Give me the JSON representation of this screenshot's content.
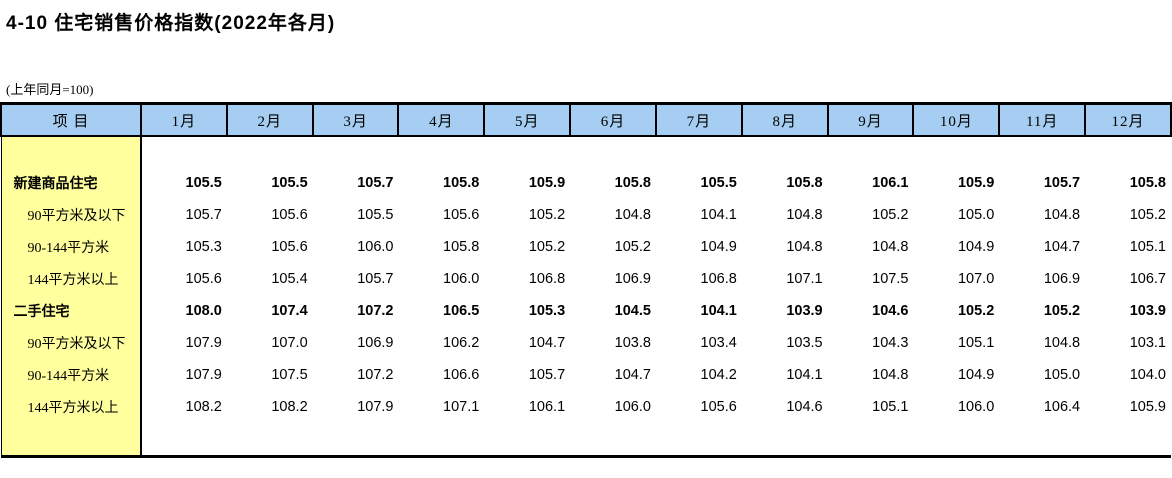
{
  "page": {
    "title": "4-10  住宅销售价格指数(2022年各月)",
    "note": "(上年同月=100)"
  },
  "table": {
    "item_header": "项  目",
    "columns": [
      "1月",
      "2月",
      "3月",
      "4月",
      "5月",
      "6月",
      "7月",
      "8月",
      "9月",
      "10月",
      "11月",
      "12月"
    ],
    "rows": [
      {
        "label": "新建商品住宅",
        "level": 0,
        "bold": true,
        "values": [
          "105.5",
          "105.5",
          "105.7",
          "105.8",
          "105.9",
          "105.8",
          "105.5",
          "105.8",
          "106.1",
          "105.9",
          "105.7",
          "105.8"
        ]
      },
      {
        "label": "90平方米及以下",
        "level": 1,
        "bold": false,
        "values": [
          "105.7",
          "105.6",
          "105.5",
          "105.6",
          "105.2",
          "104.8",
          "104.1",
          "104.8",
          "105.2",
          "105.0",
          "104.8",
          "105.2"
        ]
      },
      {
        "label": "90-144平方米",
        "level": 1,
        "bold": false,
        "values": [
          "105.3",
          "105.6",
          "106.0",
          "105.8",
          "105.2",
          "105.2",
          "104.9",
          "104.8",
          "104.8",
          "104.9",
          "104.7",
          "105.1"
        ]
      },
      {
        "label": "144平方米以上",
        "level": 1,
        "bold": false,
        "values": [
          "105.6",
          "105.4",
          "105.7",
          "106.0",
          "106.8",
          "106.9",
          "106.8",
          "107.1",
          "107.5",
          "107.0",
          "106.9",
          "106.7"
        ]
      },
      {
        "label": "二手住宅",
        "level": 0,
        "bold": true,
        "values": [
          "108.0",
          "107.4",
          "107.2",
          "106.5",
          "105.3",
          "104.5",
          "104.1",
          "103.9",
          "104.6",
          "105.2",
          "105.2",
          "103.9"
        ]
      },
      {
        "label": "90平方米及以下",
        "level": 1,
        "bold": false,
        "values": [
          "107.9",
          "107.0",
          "106.9",
          "106.2",
          "104.7",
          "103.8",
          "103.4",
          "103.5",
          "104.3",
          "105.1",
          "104.8",
          "103.1"
        ]
      },
      {
        "label": "90-144平方米",
        "level": 1,
        "bold": false,
        "values": [
          "107.9",
          "107.5",
          "107.2",
          "106.6",
          "105.7",
          "104.7",
          "104.2",
          "104.1",
          "104.8",
          "104.9",
          "105.0",
          "104.0"
        ]
      },
      {
        "label": "144平方米以上",
        "level": 1,
        "bold": false,
        "values": [
          "108.2",
          "108.2",
          "107.9",
          "107.1",
          "106.1",
          "106.0",
          "105.6",
          "104.6",
          "105.1",
          "106.0",
          "106.4",
          "105.9"
        ]
      }
    ]
  },
  "colors": {
    "header_bg": "#A6CEF2",
    "item_column_bg": "#FFFF9E",
    "border": "#000000"
  }
}
